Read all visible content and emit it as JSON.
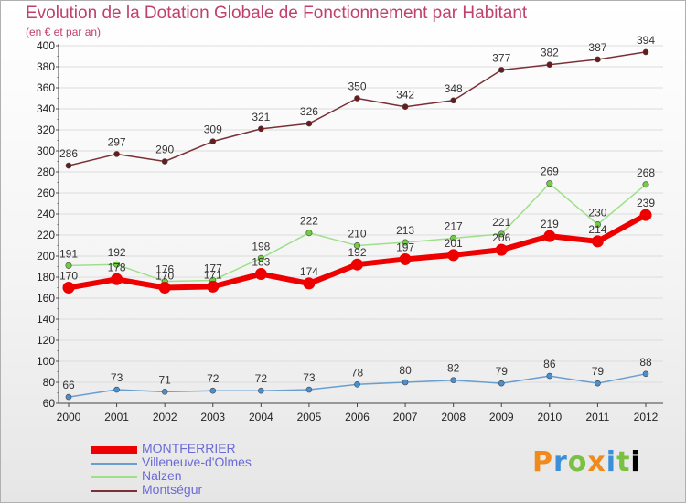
{
  "chart_data": {
    "type": "line",
    "title": "Evolution de la Dotation Globale de Fonctionnement par Habitant",
    "subtitle": "(en € et par an)",
    "xlabel": "",
    "ylabel": "",
    "x": [
      "2000",
      "2001",
      "2002",
      "2003",
      "2004",
      "2005",
      "2006",
      "2007",
      "2008",
      "2009",
      "2010",
      "2011",
      "2012"
    ],
    "ylim": [
      60,
      400
    ],
    "yticks": [
      60,
      80,
      100,
      120,
      140,
      160,
      180,
      200,
      220,
      240,
      260,
      280,
      300,
      320,
      340,
      360,
      380,
      400
    ],
    "grid": true,
    "legend_position": "bottom-left",
    "series": [
      {
        "name": "MONTFERRIER",
        "color": "#ee0000",
        "point_color": "#ee0000",
        "values": [
          170,
          178,
          170,
          171,
          183,
          174,
          192,
          197,
          201,
          206,
          219,
          214,
          239
        ]
      },
      {
        "name": "Villeneuve-d'Olmes",
        "color": "#6a9ed0",
        "point_color": "#4a90d0",
        "values": [
          66,
          73,
          71,
          72,
          72,
          73,
          78,
          80,
          82,
          79,
          86,
          79,
          88
        ]
      },
      {
        "name": "Nalzen",
        "color": "#9ee089",
        "point_color": "#6fcf3f",
        "values": [
          191,
          192,
          176,
          177,
          198,
          222,
          210,
          213,
          217,
          221,
          269,
          230,
          268
        ]
      },
      {
        "name": "Montségur",
        "color": "#7a3036",
        "point_color": "#6a1a1a",
        "values": [
          286,
          297,
          290,
          309,
          321,
          326,
          350,
          342,
          348,
          377,
          382,
          387,
          394
        ]
      }
    ]
  },
  "logo": {
    "letters": [
      "P",
      "r",
      "o",
      "x",
      "i",
      "t",
      "i"
    ]
  }
}
